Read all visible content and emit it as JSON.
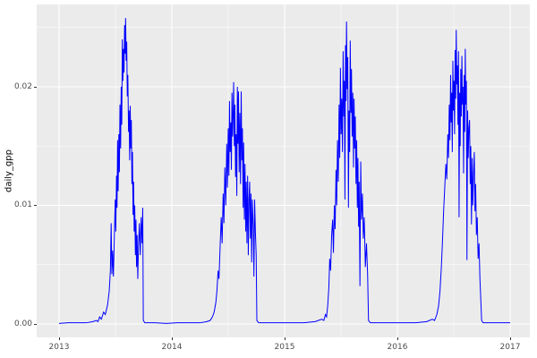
{
  "figure": {
    "y_axis_title": "daily_gpp"
  },
  "chart_data": {
    "type": "line",
    "title": "",
    "xlabel": "",
    "ylabel": "daily_gpp",
    "legend": "none",
    "grid": true,
    "panel_bg": "#EBEBEB",
    "grid_color": "#FFFFFF",
    "tick_color": "#333333",
    "tick_label_color": "#4D4D4D",
    "line_color": "#0000FF",
    "x_range": [
      2012.8016,
      2017.1746
    ],
    "y_range": [
      -0.001132,
      0.026943
    ],
    "x_ticks": {
      "major": [
        2013,
        2014,
        2015,
        2016,
        2017
      ],
      "labels": [
        "2013",
        "2014",
        "2015",
        "2016",
        "2017"
      ],
      "minor": [
        2013.5,
        2014.5,
        2015.5,
        2016.5
      ]
    },
    "y_ticks": {
      "major": [
        0,
        0.01,
        0.02
      ],
      "labels": [
        "0.00",
        "0.01",
        "0.02"
      ],
      "minor": [
        0.005,
        0.015,
        0.025
      ]
    },
    "series": [
      {
        "name": "daily_gpp",
        "color": "#0000FF",
        "points": [
          [
            2013.0,
            5e-05
          ],
          [
            2013.08,
            0.0001
          ],
          [
            2013.16,
            0.0001
          ],
          [
            2013.24,
            0.0001
          ],
          [
            2013.3,
            0.0002
          ],
          [
            2013.33,
            0.0003
          ],
          [
            2013.345,
            0.0002
          ],
          [
            2013.36,
            0.0006
          ],
          [
            2013.375,
            0.0004
          ],
          [
            2013.395,
            0.001
          ],
          [
            2013.41,
            0.0008
          ],
          [
            2013.43,
            0.0016
          ],
          [
            2013.445,
            0.0028
          ],
          [
            2013.455,
            0.0045
          ],
          [
            2013.462,
            0.0085
          ],
          [
            2013.468,
            0.0042
          ],
          [
            2013.475,
            0.0062
          ],
          [
            2013.482,
            0.004
          ],
          [
            2013.49,
            0.0072
          ],
          [
            2013.498,
            0.0105
          ],
          [
            2013.503,
            0.0078
          ],
          [
            2013.509,
            0.0125
          ],
          [
            2013.514,
            0.0098
          ],
          [
            2013.519,
            0.0155
          ],
          [
            2013.524,
            0.0112
          ],
          [
            2013.53,
            0.016
          ],
          [
            2013.535,
            0.0128
          ],
          [
            2013.54,
            0.0185
          ],
          [
            2013.546,
            0.0148
          ],
          [
            2013.551,
            0.02
          ],
          [
            2013.556,
            0.0168
          ],
          [
            2013.561,
            0.024
          ],
          [
            2013.566,
            0.0205
          ],
          [
            2013.571,
            0.0232
          ],
          [
            2013.576,
            0.0212
          ],
          [
            2013.581,
            0.0252
          ],
          [
            2013.586,
            0.0228
          ],
          [
            2013.59,
            0.0258
          ],
          [
            2013.595,
            0.0222
          ],
          [
            2013.6,
            0.0238
          ],
          [
            2013.605,
            0.0192
          ],
          [
            2013.61,
            0.021
          ],
          [
            2013.616,
            0.0162
          ],
          [
            2013.621,
            0.018
          ],
          [
            2013.626,
            0.0138
          ],
          [
            2013.631,
            0.0184
          ],
          [
            2013.636,
            0.0148
          ],
          [
            2013.641,
            0.0172
          ],
          [
            2013.646,
            0.0118
          ],
          [
            2013.651,
            0.0145
          ],
          [
            2013.656,
            0.0092
          ],
          [
            2013.661,
            0.012
          ],
          [
            2013.666,
            0.0078
          ],
          [
            2013.671,
            0.01
          ],
          [
            2013.677,
            0.0058
          ],
          [
            2013.682,
            0.0088
          ],
          [
            2013.687,
            0.0048
          ],
          [
            2013.692,
            0.0075
          ],
          [
            2013.698,
            0.0038
          ],
          [
            2013.704,
            0.0065
          ],
          [
            2013.712,
            0.0085
          ],
          [
            2013.72,
            0.0058
          ],
          [
            2013.728,
            0.009
          ],
          [
            2013.736,
            0.0068
          ],
          [
            2013.742,
            0.0098
          ],
          [
            2013.747,
            0.0003
          ],
          [
            2013.76,
            0.0001
          ],
          [
            2013.85,
            0.0001
          ],
          [
            2013.95,
            5e-05
          ],
          [
            2014.05,
            0.0001
          ],
          [
            2014.15,
            0.0001
          ],
          [
            2014.25,
            0.0001
          ],
          [
            2014.31,
            0.0002
          ],
          [
            2014.34,
            0.0003
          ],
          [
            2014.36,
            0.0006
          ],
          [
            2014.375,
            0.001
          ],
          [
            2014.39,
            0.0018
          ],
          [
            2014.4,
            0.0028
          ],
          [
            2014.41,
            0.0045
          ],
          [
            2014.418,
            0.0038
          ],
          [
            2014.428,
            0.0065
          ],
          [
            2014.438,
            0.009
          ],
          [
            2014.446,
            0.0068
          ],
          [
            2014.455,
            0.011
          ],
          [
            2014.462,
            0.0085
          ],
          [
            2014.47,
            0.0132
          ],
          [
            2014.478,
            0.01
          ],
          [
            2014.487,
            0.0152
          ],
          [
            2014.493,
            0.0115
          ],
          [
            2014.5,
            0.0165
          ],
          [
            2014.506,
            0.0125
          ],
          [
            2014.511,
            0.0188
          ],
          [
            2014.517,
            0.0145
          ],
          [
            2014.523,
            0.017
          ],
          [
            2014.528,
            0.013
          ],
          [
            2014.533,
            0.0195
          ],
          [
            2014.539,
            0.0158
          ],
          [
            2014.544,
            0.0178
          ],
          [
            2014.548,
            0.0204
          ],
          [
            2014.554,
            0.015
          ],
          [
            2014.559,
            0.0185
          ],
          [
            2014.565,
            0.0124
          ],
          [
            2014.57,
            0.016
          ],
          [
            2014.576,
            0.0108
          ],
          [
            2014.581,
            0.02
          ],
          [
            2014.586,
            0.0152
          ],
          [
            2014.591,
            0.0196
          ],
          [
            2014.597,
            0.0128
          ],
          [
            2014.603,
            0.0178
          ],
          [
            2014.609,
            0.0118
          ],
          [
            2014.615,
            0.0196
          ],
          [
            2014.621,
            0.0138
          ],
          [
            2014.626,
            0.0165
          ],
          [
            2014.632,
            0.0098
          ],
          [
            2014.637,
            0.0153
          ],
          [
            2014.643,
            0.0088
          ],
          [
            2014.649,
            0.0135
          ],
          [
            2014.655,
            0.0078
          ],
          [
            2014.66,
            0.012
          ],
          [
            2014.666,
            0.0068
          ],
          [
            2014.672,
            0.0125
          ],
          [
            2014.678,
            0.0058
          ],
          [
            2014.684,
            0.0105
          ],
          [
            2014.69,
            0.012
          ],
          [
            2014.696,
            0.0072
          ],
          [
            2014.702,
            0.011
          ],
          [
            2014.708,
            0.0052
          ],
          [
            2014.714,
            0.0105
          ],
          [
            2014.722,
            0.0082
          ],
          [
            2014.728,
            0.004
          ],
          [
            2014.734,
            0.0105
          ],
          [
            2014.741,
            0.0078
          ],
          [
            2014.748,
            0.0058
          ],
          [
            2014.754,
            0.0003
          ],
          [
            2014.77,
            0.0001
          ],
          [
            2014.87,
            0.0001
          ],
          [
            2014.97,
            0.0001
          ],
          [
            2015.07,
            0.0001
          ],
          [
            2015.17,
            0.0001
          ],
          [
            2015.27,
            0.0002
          ],
          [
            2015.33,
            0.0004
          ],
          [
            2015.348,
            0.0003
          ],
          [
            2015.362,
            0.0008
          ],
          [
            2015.372,
            0.0006
          ],
          [
            2015.382,
            0.0015
          ],
          [
            2015.392,
            0.003
          ],
          [
            2015.4,
            0.0055
          ],
          [
            2015.408,
            0.0045
          ],
          [
            2015.417,
            0.0075
          ],
          [
            2015.426,
            0.0088
          ],
          [
            2015.433,
            0.006
          ],
          [
            2015.441,
            0.01
          ],
          [
            2015.448,
            0.008
          ],
          [
            2015.456,
            0.013
          ],
          [
            2015.462,
            0.01
          ],
          [
            2015.469,
            0.0155
          ],
          [
            2015.476,
            0.012
          ],
          [
            2015.483,
            0.0185
          ],
          [
            2015.489,
            0.014
          ],
          [
            2015.495,
            0.0216
          ],
          [
            2015.501,
            0.016
          ],
          [
            2015.507,
            0.019
          ],
          [
            2015.513,
            0.0145
          ],
          [
            2015.519,
            0.023
          ],
          [
            2015.525,
            0.0175
          ],
          [
            2015.53,
            0.0205
          ],
          [
            2015.535,
            0.0105
          ],
          [
            2015.54,
            0.0235
          ],
          [
            2015.545,
            0.0188
          ],
          [
            2015.549,
            0.0255
          ],
          [
            2015.555,
            0.0198
          ],
          [
            2015.56,
            0.0225
          ],
          [
            2015.566,
            0.0098
          ],
          [
            2015.571,
            0.018
          ],
          [
            2015.577,
            0.0145
          ],
          [
            2015.582,
            0.0239
          ],
          [
            2015.588,
            0.0178
          ],
          [
            2015.593,
            0.0215
          ],
          [
            2015.599,
            0.0158
          ],
          [
            2015.605,
            0.0195
          ],
          [
            2015.611,
            0.0132
          ],
          [
            2015.616,
            0.019
          ],
          [
            2015.622,
            0.0148
          ],
          [
            2015.627,
            0.0175
          ],
          [
            2015.633,
            0.0118
          ],
          [
            2015.639,
            0.0155
          ],
          [
            2015.645,
            0.0098
          ],
          [
            2015.65,
            0.014
          ],
          [
            2015.656,
            0.0082
          ],
          [
            2015.661,
            0.012
          ],
          [
            2015.668,
            0.0032
          ],
          [
            2015.675,
            0.0137
          ],
          [
            2015.682,
            0.0088
          ],
          [
            2015.69,
            0.011
          ],
          [
            2015.698,
            0.0072
          ],
          [
            2015.706,
            0.009
          ],
          [
            2015.716,
            0.0048
          ],
          [
            2015.726,
            0.0068
          ],
          [
            2015.736,
            0.0042
          ],
          [
            2015.744,
            0.0003
          ],
          [
            2015.76,
            0.0001
          ],
          [
            2015.86,
            0.0001
          ],
          [
            2015.96,
            0.0001
          ],
          [
            2016.06,
            0.0001
          ],
          [
            2016.16,
            0.0001
          ],
          [
            2016.26,
            0.0002
          ],
          [
            2016.31,
            0.0004
          ],
          [
            2016.33,
            0.0003
          ],
          [
            2016.35,
            0.0008
          ],
          [
            2016.365,
            0.0015
          ],
          [
            2016.378,
            0.0028
          ],
          [
            2016.39,
            0.0048
          ],
          [
            2016.4,
            0.007
          ],
          [
            2016.41,
            0.0095
          ],
          [
            2016.42,
            0.0115
          ],
          [
            2016.43,
            0.0135
          ],
          [
            2016.438,
            0.0122
          ],
          [
            2016.447,
            0.016
          ],
          [
            2016.453,
            0.014
          ],
          [
            2016.46,
            0.0185
          ],
          [
            2016.466,
            0.0155
          ],
          [
            2016.472,
            0.021
          ],
          [
            2016.477,
            0.017
          ],
          [
            2016.482,
            0.0195
          ],
          [
            2016.487,
            0.0145
          ],
          [
            2016.492,
            0.0222
          ],
          [
            2016.497,
            0.018
          ],
          [
            2016.502,
            0.0205
          ],
          [
            2016.507,
            0.016
          ],
          [
            2016.512,
            0.0231
          ],
          [
            2016.517,
            0.019
          ],
          [
            2016.522,
            0.0248
          ],
          [
            2016.527,
            0.0202
          ],
          [
            2016.532,
            0.0218
          ],
          [
            2016.537,
            0.0168
          ],
          [
            2016.542,
            0.023
          ],
          [
            2016.547,
            0.009
          ],
          [
            2016.552,
            0.0195
          ],
          [
            2016.557,
            0.015
          ],
          [
            2016.562,
            0.0215
          ],
          [
            2016.567,
            0.0175
          ],
          [
            2016.572,
            0.0226
          ],
          [
            2016.577,
            0.0185
          ],
          [
            2016.582,
            0.02
          ],
          [
            2016.587,
            0.0127
          ],
          [
            2016.592,
            0.021
          ],
          [
            2016.597,
            0.0162
          ],
          [
            2016.602,
            0.0232
          ],
          [
            2016.607,
            0.0185
          ],
          [
            2016.612,
            0.0205
          ],
          [
            2016.617,
            0.0054
          ],
          [
            2016.623,
            0.018
          ],
          [
            2016.628,
            0.014
          ],
          [
            2016.634,
            0.0165
          ],
          [
            2016.64,
            0.0172
          ],
          [
            2016.646,
            0.0118
          ],
          [
            2016.651,
            0.015
          ],
          [
            2016.657,
            0.0084
          ],
          [
            2016.663,
            0.014
          ],
          [
            2016.669,
            0.01
          ],
          [
            2016.675,
            0.0125
          ],
          [
            2016.682,
            0.0145
          ],
          [
            2016.688,
            0.0095
          ],
          [
            2016.694,
            0.0118
          ],
          [
            2016.701,
            0.0075
          ],
          [
            2016.708,
            0.009
          ],
          [
            2016.716,
            0.0055
          ],
          [
            2016.724,
            0.0068
          ],
          [
            2016.732,
            0.0038
          ],
          [
            2016.74,
            0.002
          ],
          [
            2016.747,
            0.0003
          ],
          [
            2016.76,
            0.0001
          ],
          [
            2016.85,
            0.0001
          ],
          [
            2016.93,
            0.0001
          ],
          [
            2017.0,
            0.0001
          ]
        ]
      }
    ]
  }
}
